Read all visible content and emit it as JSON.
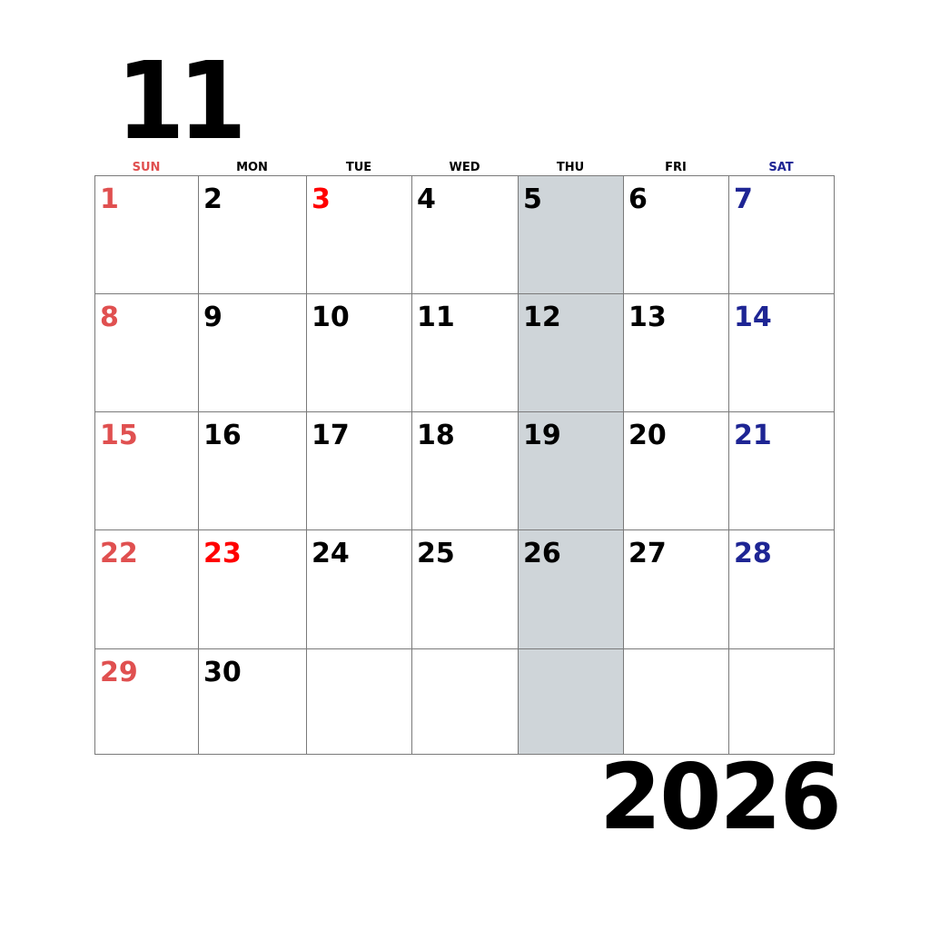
{
  "month": "11",
  "year": "2026",
  "colors": {
    "sunday": "#e05050",
    "holiday": "#ff0000",
    "saturday": "#1e2594",
    "weekday": "#000000",
    "shade": "#cfd5d9"
  },
  "weekdays": [
    {
      "label": "SUN",
      "color": "#e05050"
    },
    {
      "label": "MON",
      "color": "#000000"
    },
    {
      "label": "TUE",
      "color": "#000000"
    },
    {
      "label": "WED",
      "color": "#000000"
    },
    {
      "label": "THU",
      "color": "#000000"
    },
    {
      "label": "FRI",
      "color": "#000000"
    },
    {
      "label": "SAT",
      "color": "#1e2594"
    }
  ],
  "shaded_weekday": "THU",
  "weeks": [
    [
      {
        "d": "1",
        "c": "#e05050"
      },
      {
        "d": "2",
        "c": "#000000"
      },
      {
        "d": "3",
        "c": "#ff0000"
      },
      {
        "d": "4",
        "c": "#000000"
      },
      {
        "d": "5",
        "c": "#000000"
      },
      {
        "d": "6",
        "c": "#000000"
      },
      {
        "d": "7",
        "c": "#1e2594"
      }
    ],
    [
      {
        "d": "8",
        "c": "#e05050"
      },
      {
        "d": "9",
        "c": "#000000"
      },
      {
        "d": "10",
        "c": "#000000"
      },
      {
        "d": "11",
        "c": "#000000"
      },
      {
        "d": "12",
        "c": "#000000"
      },
      {
        "d": "13",
        "c": "#000000"
      },
      {
        "d": "14",
        "c": "#1e2594"
      }
    ],
    [
      {
        "d": "15",
        "c": "#e05050"
      },
      {
        "d": "16",
        "c": "#000000"
      },
      {
        "d": "17",
        "c": "#000000"
      },
      {
        "d": "18",
        "c": "#000000"
      },
      {
        "d": "19",
        "c": "#000000"
      },
      {
        "d": "20",
        "c": "#000000"
      },
      {
        "d": "21",
        "c": "#1e2594"
      }
    ],
    [
      {
        "d": "22",
        "c": "#e05050"
      },
      {
        "d": "23",
        "c": "#ff0000"
      },
      {
        "d": "24",
        "c": "#000000"
      },
      {
        "d": "25",
        "c": "#000000"
      },
      {
        "d": "26",
        "c": "#000000"
      },
      {
        "d": "27",
        "c": "#000000"
      },
      {
        "d": "28",
        "c": "#1e2594"
      }
    ],
    [
      {
        "d": "29",
        "c": "#e05050"
      },
      {
        "d": "30",
        "c": "#000000"
      },
      {
        "d": "",
        "c": "#000000"
      },
      {
        "d": "",
        "c": "#000000"
      },
      {
        "d": "",
        "c": "#000000"
      },
      {
        "d": "",
        "c": "#000000"
      },
      {
        "d": "",
        "c": "#000000"
      }
    ]
  ]
}
